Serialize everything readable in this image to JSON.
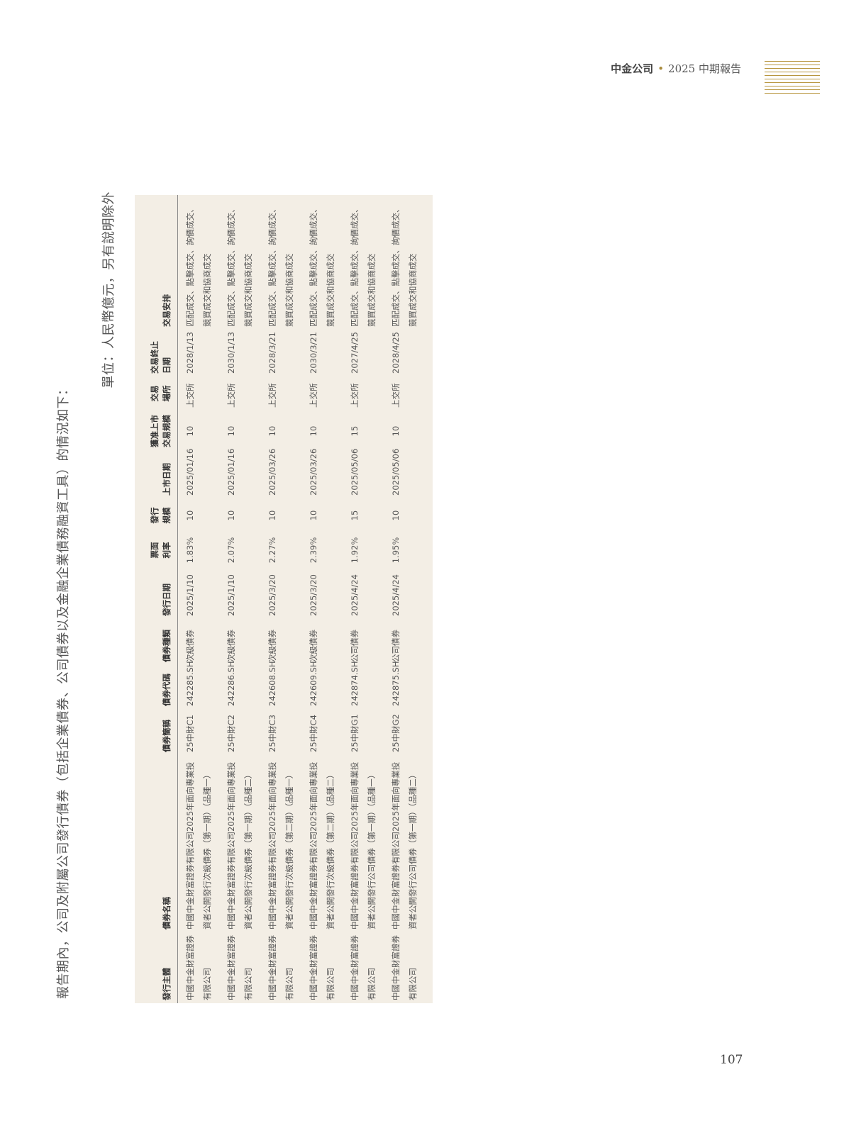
{
  "header": {
    "company": "中金公司",
    "separator": "•",
    "report": "2025 中期報告"
  },
  "intro": "報告期內，公司及附屬公司發行債券（包括企業債券、公司債券以及金融企業債務融資工具）的情況如下：",
  "unit": "單位：人民幣億元，另有說明除外",
  "table": {
    "columns": [
      "發行主體",
      "債券名稱",
      "債券簡稱",
      "債券代碼",
      "債券種類",
      "發行日期",
      "票面\n利率",
      "發行\n規模",
      "上市日期",
      "獲准上市\n交易規模",
      "交易\n場所",
      "交易終止\n日期",
      "交易安排"
    ],
    "rows": [
      [
        "中國中金財富證券有限公司",
        "中國中金財富證券有限公司2025年面向專業投資者公開發行次級債券（第一期）（品種一）",
        "25中財C1",
        "242285.SH",
        "次級債券",
        "2025/1/10",
        "1.83%",
        "10",
        "2025/01/16",
        "10",
        "上交所",
        "2028/1/13",
        "匹配成交、點擊成交、詢價成交、競買成交和協商成交"
      ],
      [
        "中國中金財富證券有限公司",
        "中國中金財富證券有限公司2025年面向專業投資者公開發行次級債券（第一期）（品種二）",
        "25中財C2",
        "242286.SH",
        "次級債券",
        "2025/1/10",
        "2.07%",
        "10",
        "2025/01/16",
        "10",
        "上交所",
        "2030/1/13",
        "匹配成交、點擊成交、詢價成交、競買成交和協商成交"
      ],
      [
        "中國中金財富證券有限公司",
        "中國中金財富證券有限公司2025年面向專業投資者公開發行次級債券（第二期）（品種一）",
        "25中財C3",
        "242608.SH",
        "次級債券",
        "2025/3/20",
        "2.27%",
        "10",
        "2025/03/26",
        "10",
        "上交所",
        "2028/3/21",
        "匹配成交、點擊成交、詢價成交、競買成交和協商成交"
      ],
      [
        "中國中金財富證券有限公司",
        "中國中金財富證券有限公司2025年面向專業投資者公開發行次級債券（第二期）（品種二）",
        "25中財C4",
        "242609.SH",
        "次級債券",
        "2025/3/20",
        "2.39%",
        "10",
        "2025/03/26",
        "10",
        "上交所",
        "2030/3/21",
        "匹配成交、點擊成交、詢價成交、競買成交和協商成交"
      ],
      [
        "中國中金財富證券有限公司",
        "中國中金財富證券有限公司2025年面向專業投資者公開發行公司債券（第一期）（品種一）",
        "25中財G1",
        "242874.SH",
        "公司債券",
        "2025/4/24",
        "1.92%",
        "15",
        "2025/05/06",
        "15",
        "上交所",
        "2027/4/25",
        "匹配成交、點擊成交、詢價成交、競買成交和協商成交"
      ],
      [
        "中國中金財富證券有限公司",
        "中國中金財富證券有限公司2025年面向專業投資者公開發行公司債券（第一期）（品種二）",
        "25中財G2",
        "242875.SH",
        "公司債券",
        "2025/4/24",
        "1.95%",
        "10",
        "2025/05/06",
        "10",
        "上交所",
        "2028/4/25",
        "匹配成交、點擊成交、詢價成交、競買成交和協商成交"
      ]
    ]
  },
  "page_number": "107",
  "colors": {
    "accent_gold": "#b8963e",
    "table_bg": "#f3eee5"
  }
}
